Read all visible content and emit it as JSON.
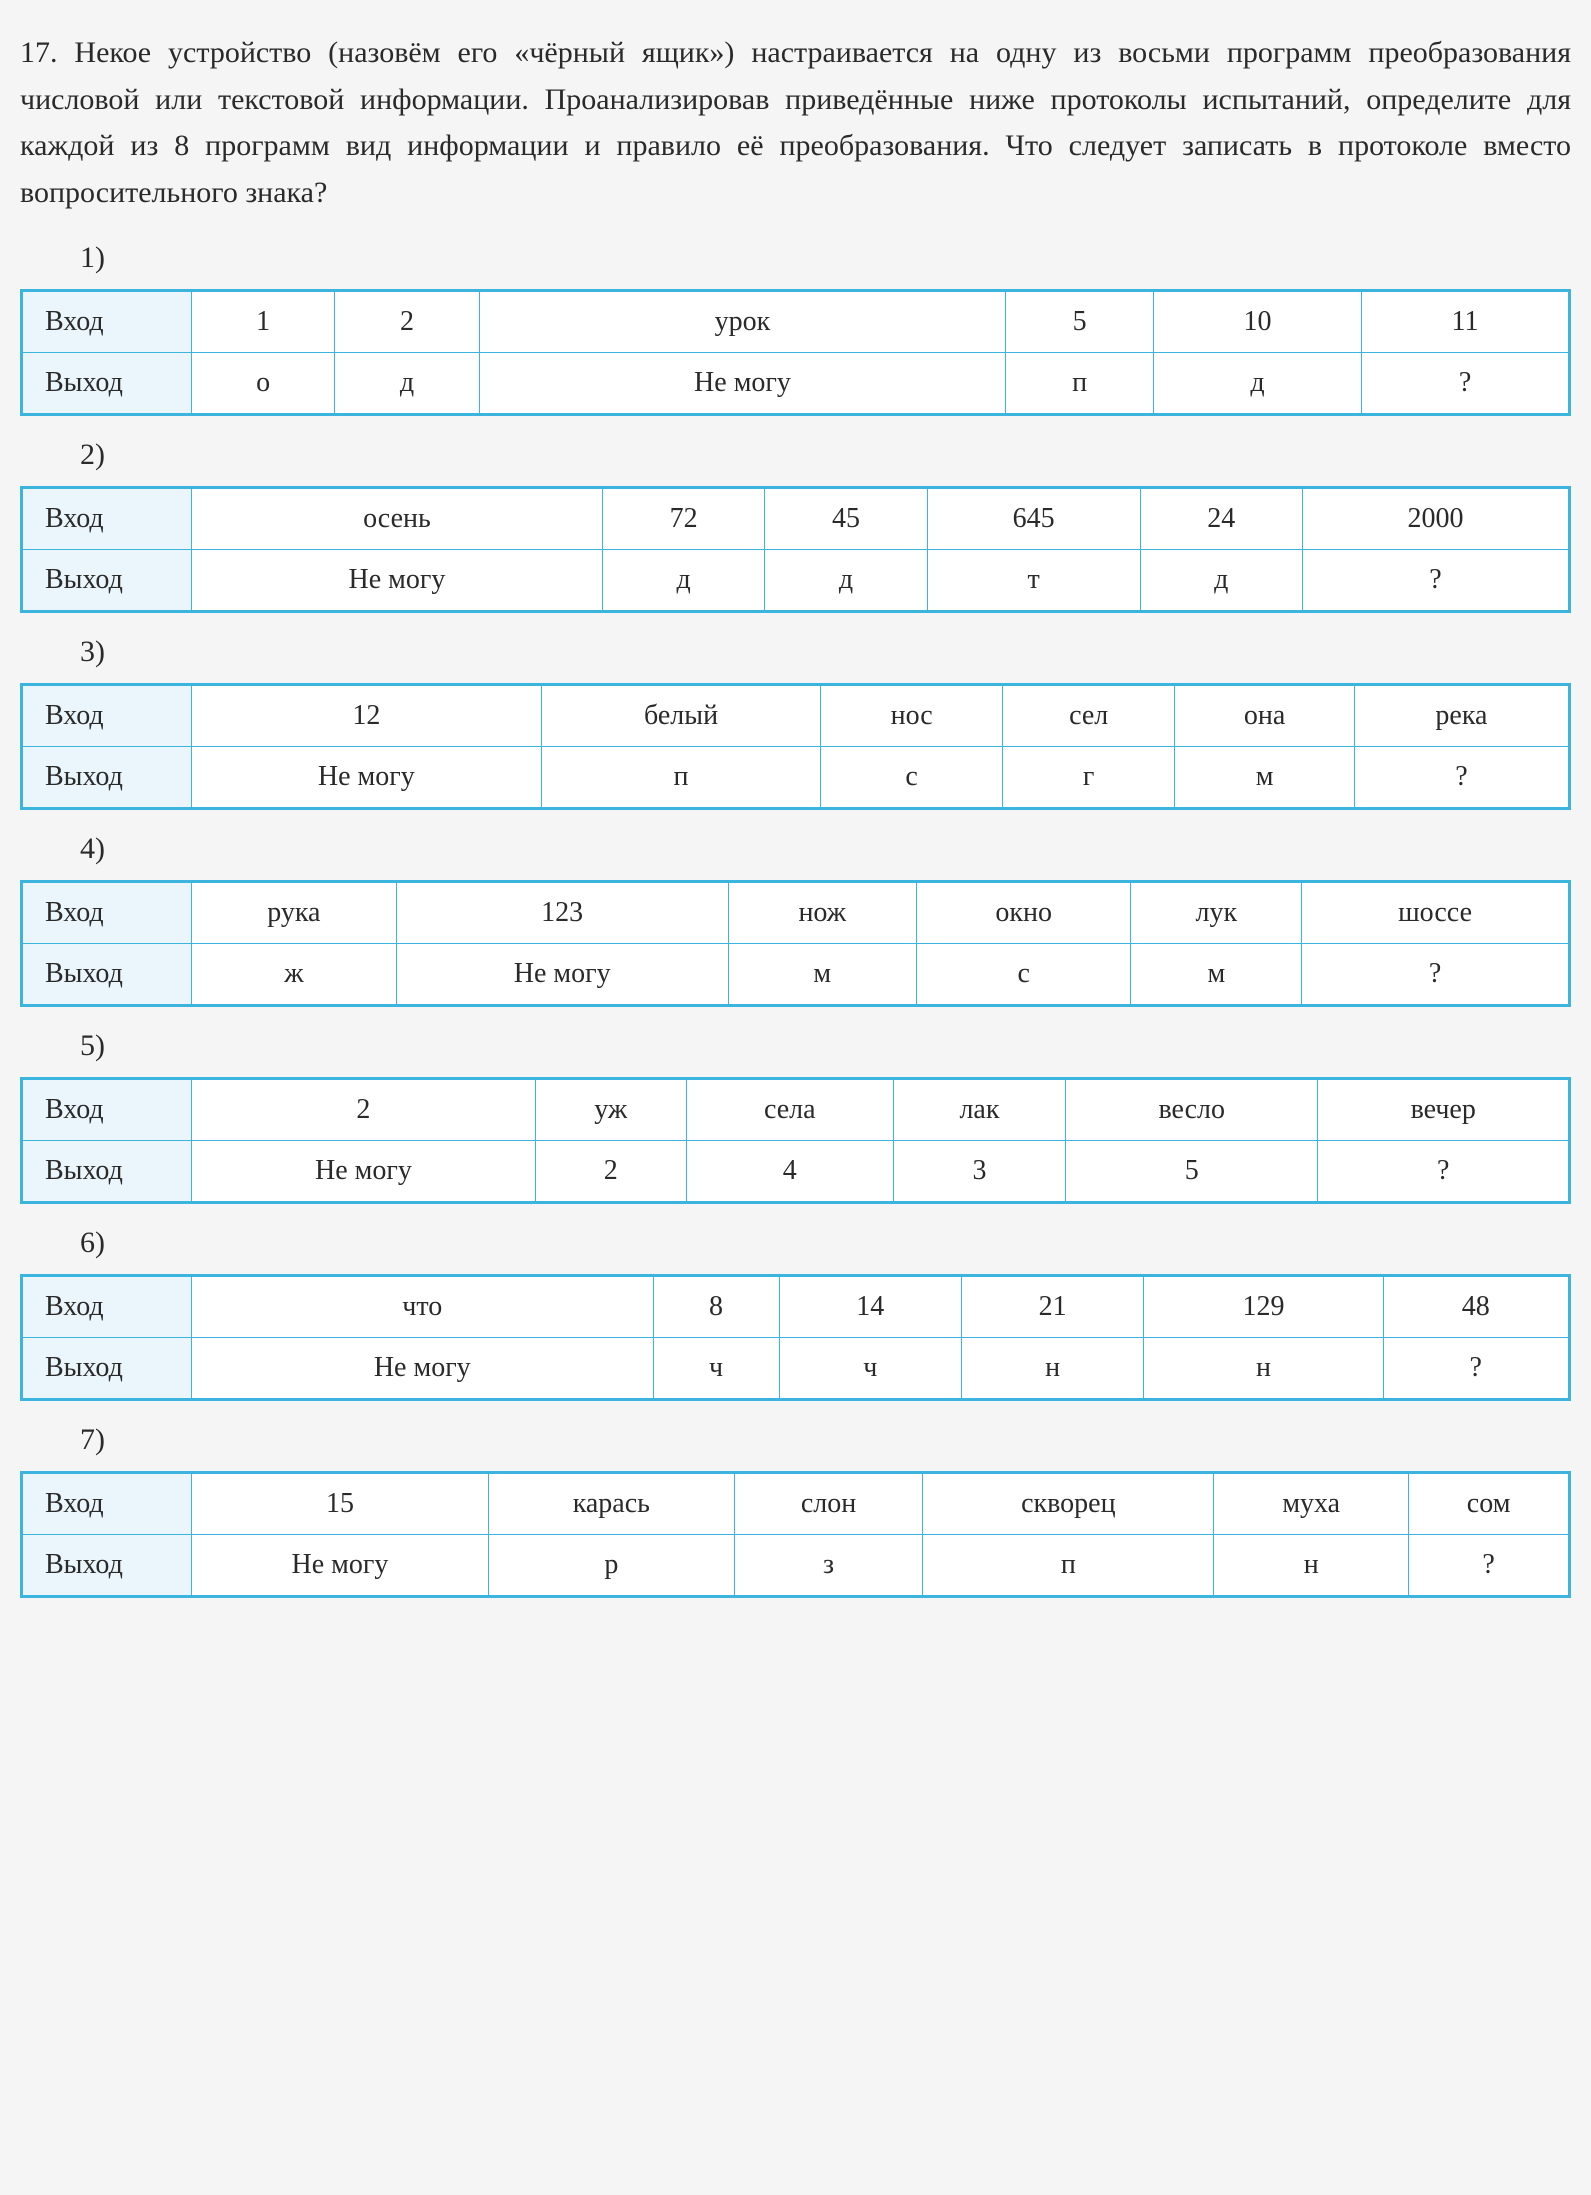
{
  "problem": {
    "number": "17.",
    "text": "Некое устройство (назовём его «чёрный ящик») настраивается на одну из восьми программ преобразования числовой или текстовой информации. Проанализировав приведённые ниже протоколы испытаний, определите для каждой из 8 программ вид информации и правило её преобразования. Что следует записать в протоколе вместо вопросительного знака?"
  },
  "row_labels": {
    "in": "Вход",
    "out": "Выход"
  },
  "variants": [
    {
      "label": "1)",
      "in": [
        "1",
        "2",
        "урок",
        "5",
        "10",
        "11"
      ],
      "out": [
        "о",
        "д",
        "Не могу",
        "п",
        "д",
        "?"
      ]
    },
    {
      "label": "2)",
      "in": [
        "осень",
        "72",
        "45",
        "645",
        "24",
        "2000"
      ],
      "out": [
        "Не могу",
        "д",
        "д",
        "т",
        "д",
        "?"
      ]
    },
    {
      "label": "3)",
      "in": [
        "12",
        "белый",
        "нос",
        "сел",
        "она",
        "река"
      ],
      "out": [
        "Не могу",
        "п",
        "с",
        "г",
        "м",
        "?"
      ]
    },
    {
      "label": "4)",
      "in": [
        "рука",
        "123",
        "нож",
        "окно",
        "лук",
        "шоссе"
      ],
      "out": [
        "ж",
        "Не могу",
        "м",
        "с",
        "м",
        "?"
      ]
    },
    {
      "label": "5)",
      "in": [
        "2",
        "уж",
        "села",
        "лак",
        "весло",
        "вечер"
      ],
      "out": [
        "Не могу",
        "2",
        "4",
        "3",
        "5",
        "?"
      ]
    },
    {
      "label": "6)",
      "in": [
        "что",
        "8",
        "14",
        "21",
        "129",
        "48"
      ],
      "out": [
        "Не могу",
        "ч",
        "ч",
        "н",
        "н",
        "?"
      ]
    },
    {
      "label": "7)",
      "in": [
        "15",
        "карась",
        "слон",
        "скворец",
        "муха",
        "сом"
      ],
      "out": [
        "Не могу",
        "р",
        "з",
        "п",
        "н",
        "?"
      ]
    }
  ],
  "colors": {
    "table_border": "#3bb5dd",
    "head_bg": "#eaf6fb",
    "page_bg": "#f5f5f5",
    "cell_bg": "#ffffff",
    "text": "#2a2a2a"
  },
  "typography": {
    "body_fontsize": 30,
    "cell_fontsize": 28
  }
}
